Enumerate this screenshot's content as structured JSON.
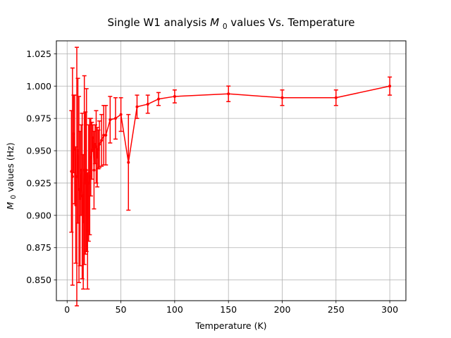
{
  "chart_data": {
    "type": "scatter",
    "title": "Single W1 analysis",
    "title_math": "M",
    "title_math_sub": "0",
    "title_suffix": " values Vs. Temperature",
    "xlabel": "Temperature (K)",
    "ylabel_math": "M",
    "ylabel_math_sub": "0",
    "ylabel_suffix": " values (Hz)",
    "xlim": [
      -10,
      315
    ],
    "ylim": [
      0.834,
      1.035
    ],
    "xticks": [
      0,
      50,
      100,
      150,
      200,
      250,
      300
    ],
    "xtick_labels": [
      "0",
      "50",
      "100",
      "150",
      "200",
      "250",
      "300"
    ],
    "yticks": [
      0.85,
      0.875,
      0.9,
      0.925,
      0.95,
      0.975,
      1.0,
      1.025
    ],
    "ytick_labels": [
      "0.850",
      "0.875",
      "0.900",
      "0.925",
      "0.950",
      "0.975",
      "1.000",
      "1.025"
    ],
    "grid": true,
    "color": "#ff0000",
    "series": [
      {
        "x": [
          4,
          5,
          6,
          7,
          8,
          9,
          10,
          11,
          12,
          13,
          14,
          15,
          16,
          17,
          18,
          19,
          20,
          21,
          22,
          23,
          24,
          25,
          26,
          27,
          28,
          29,
          30,
          32,
          34,
          36,
          40,
          45,
          50,
          57,
          65,
          75,
          85,
          100,
          150,
          200,
          250,
          300
        ],
        "y": [
          0.934,
          0.93,
          0.963,
          0.951,
          0.908,
          0.93,
          0.95,
          0.92,
          0.913,
          0.935,
          0.915,
          0.895,
          0.935,
          0.925,
          0.935,
          0.888,
          0.925,
          0.93,
          0.945,
          0.95,
          0.96,
          0.935,
          0.955,
          0.953,
          0.945,
          0.951,
          0.955,
          0.958,
          0.962,
          0.962,
          0.974,
          0.975,
          0.978,
          0.941,
          0.984,
          0.986,
          0.99,
          0.992,
          0.994,
          0.991,
          0.991,
          1.0
        ],
        "yerr": [
          0.047,
          0.084,
          0.03,
          0.042,
          0.045,
          0.1,
          0.056,
          0.072,
          0.052,
          0.035,
          0.064,
          0.052,
          0.073,
          0.055,
          0.063,
          0.045,
          0.045,
          0.045,
          0.03,
          0.022,
          0.01,
          0.03,
          0.015,
          0.028,
          0.023,
          0.015,
          0.018,
          0.02,
          0.023,
          0.023,
          0.018,
          0.016,
          0.013,
          0.037,
          0.009,
          0.007,
          0.005,
          0.005,
          0.006,
          0.006,
          0.006,
          0.007
        ]
      }
    ]
  }
}
